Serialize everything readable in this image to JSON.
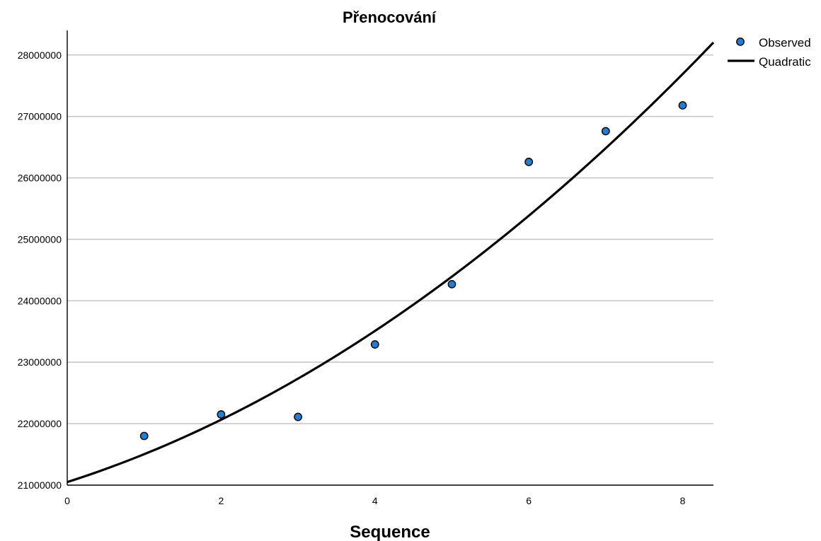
{
  "chart_data": {
    "type": "scatter",
    "title": "Přenocování",
    "xlabel": "Sequence",
    "ylabel": "",
    "xlim": [
      0,
      8.4
    ],
    "ylim": [
      21000000,
      28400000
    ],
    "x_ticks": [
      0,
      2,
      4,
      6,
      8
    ],
    "y_ticks": [
      21000000,
      22000000,
      23000000,
      24000000,
      25000000,
      26000000,
      27000000,
      28000000
    ],
    "grid": "horizontal",
    "legend_position": "right",
    "series": [
      {
        "name": "Observed",
        "kind": "points",
        "color": "#1f7fd6",
        "x": [
          1,
          2,
          3,
          4,
          5,
          6,
          7,
          8
        ],
        "y": [
          21800000,
          22150000,
          22110000,
          23290000,
          24270000,
          26260000,
          26760000,
          27180000
        ]
      },
      {
        "name": "Quadratic",
        "kind": "line",
        "color": "#000000",
        "model": "quadratic",
        "coefficients": {
          "a": 21050000,
          "b": 399600,
          "c": 53800
        }
      }
    ]
  }
}
